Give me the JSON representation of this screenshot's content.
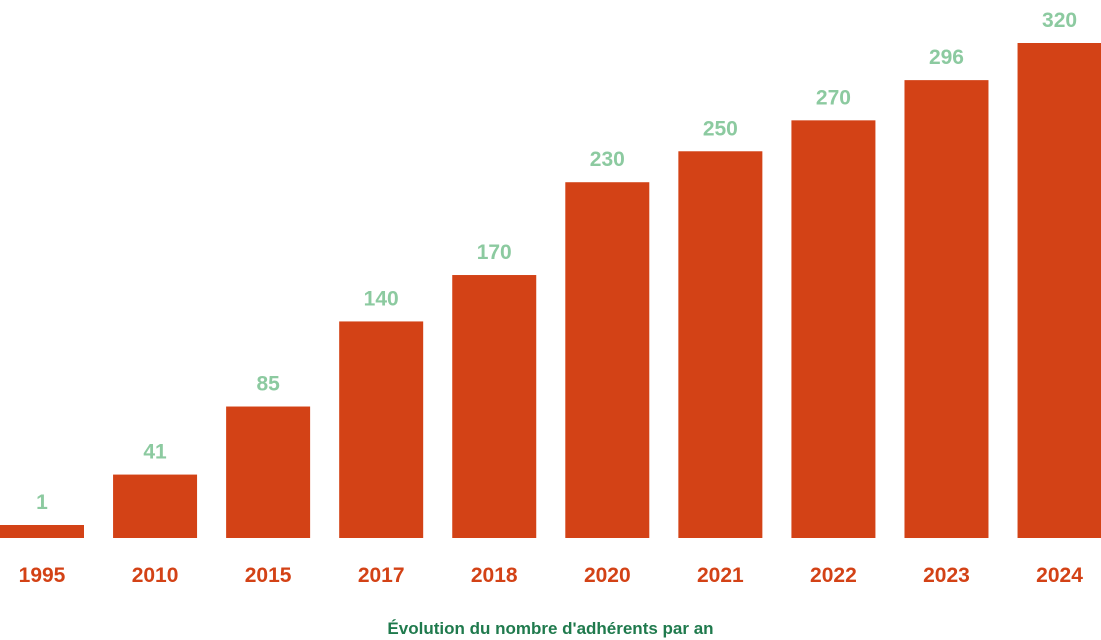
{
  "chart_data": {
    "type": "bar",
    "categories": [
      "1995",
      "2010",
      "2015",
      "2017",
      "2018",
      "2020",
      "2021",
      "2022",
      "2023",
      "2024"
    ],
    "values": [
      1,
      41,
      85,
      140,
      170,
      230,
      250,
      270,
      296,
      320
    ],
    "value_labels": [
      "1",
      "41",
      "85",
      "140",
      "170",
      "230",
      "250",
      "270",
      "296",
      "320"
    ],
    "caption": "Évolution du nombre d'adhérents par an",
    "ylim": [
      0,
      320
    ],
    "grid": false,
    "legend": "none"
  },
  "colors": {
    "bar": "#d34216",
    "value_label": "#8ccaa0",
    "tick_label": "#d34216",
    "caption": "#1f7a4d"
  }
}
